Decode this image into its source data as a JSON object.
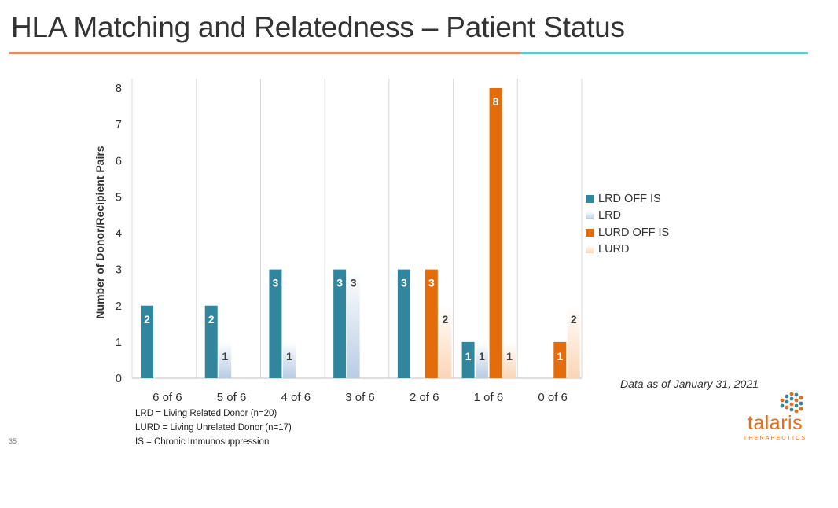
{
  "slide": {
    "title": "HLA Matching and Relatedness – Patient Status",
    "page_number": "35",
    "data_note": "Data as of January 31, 2021",
    "footnotes": [
      "LRD = Living Related Donor (n=20)",
      "LURD = Living Unrelated Donor (n=17)",
      "IS = Chronic Immunosuppression"
    ],
    "logo": {
      "word": "talaris",
      "sub": "THERAPEUTICS"
    },
    "colors": {
      "rule_left": "#e8875a",
      "rule_right": "#5ec9c9"
    }
  },
  "chart_data": {
    "type": "bar",
    "title": "",
    "xlabel": "",
    "ylabel": "Number of Donor/Recipient Pairs",
    "ylim": [
      0,
      8
    ],
    "yticks": [
      0,
      1,
      2,
      3,
      4,
      5,
      6,
      7,
      8
    ],
    "grid": "vertical category separators",
    "legend_position": "right",
    "categories": [
      "6 of 6",
      "5 of 6",
      "4 of 6",
      "3 of 6",
      "2 of 6",
      "1 of 6",
      "0 of 6"
    ],
    "series": [
      {
        "name": "LRD OFF IS",
        "color": "#31859c",
        "style": "solid",
        "values": [
          2,
          2,
          3,
          3,
          3,
          1,
          0
        ]
      },
      {
        "name": "LRD",
        "color": "#b8cce4",
        "style": "gradient",
        "values": [
          0,
          1,
          1,
          3,
          0,
          1,
          0
        ]
      },
      {
        "name": "LURD OFF IS",
        "color": "#e46c0a",
        "style": "solid",
        "values": [
          0,
          0,
          0,
          0,
          3,
          8,
          1
        ]
      },
      {
        "name": "LURD",
        "color": "#fbd5b5",
        "style": "gradient",
        "values": [
          0,
          0,
          0,
          0,
          2,
          1,
          2
        ]
      }
    ]
  }
}
